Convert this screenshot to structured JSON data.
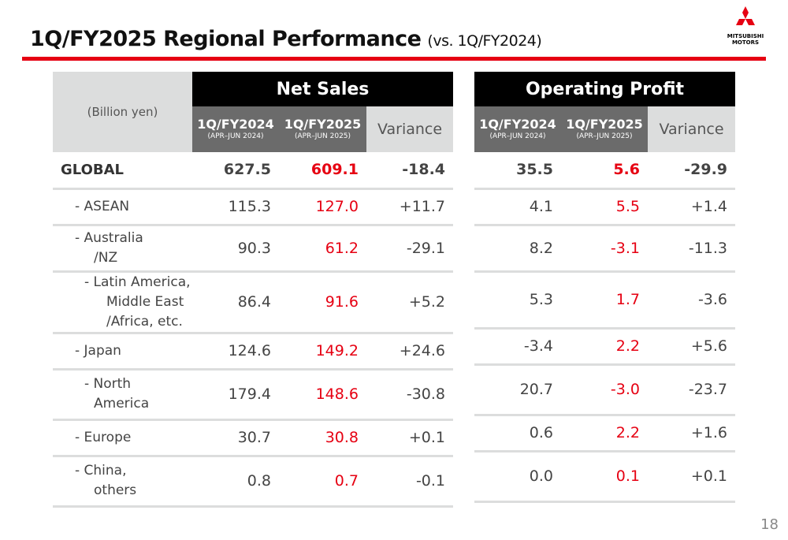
{
  "title": "1Q/FY2025 Regional Performance",
  "subtitle": "(vs. 1Q/FY2024)",
  "logo_text": "MITSUBISHI MOTORS",
  "unit_label": "(Billion yen)",
  "net_sales_header": "Net Sales",
  "operating_profit_header": "Operating Profit",
  "columns": {
    "prev": "1Q/FY2024",
    "prev_period": "(APR–JUN 2024)",
    "curr": "1Q/FY2025",
    "curr_period": "(APR–JUN 2025)",
    "variance": "Variance"
  },
  "rows": [
    {
      "label_lines": [
        "GLOBAL"
      ],
      "ns_prev": "627.5",
      "ns_curr": "609.1",
      "ns_var": "-18.4",
      "op_prev": "35.5",
      "op_curr": "5.6",
      "op_var": "-29.9"
    },
    {
      "label_lines": [
        "- ASEAN"
      ],
      "ns_prev": "115.3",
      "ns_curr": "127.0",
      "ns_var": "+11.7",
      "op_prev": "4.1",
      "op_curr": "5.5",
      "op_var": "+1.4"
    },
    {
      "label_lines": [
        "- Australia",
        "/NZ"
      ],
      "ns_prev": "90.3",
      "ns_curr": "61.2",
      "ns_var": "-29.1",
      "op_prev": "8.2",
      "op_curr": "-3.1",
      "op_var": "-11.3"
    },
    {
      "label_lines": [
        "- Latin America,",
        "Middle East",
        "/Africa, etc."
      ],
      "ns_prev": "86.4",
      "ns_curr": "91.6",
      "ns_var": "+5.2",
      "op_prev": "5.3",
      "op_curr": "1.7",
      "op_var": "-3.6"
    },
    {
      "label_lines": [
        "- Japan"
      ],
      "ns_prev": "124.6",
      "ns_curr": "149.2",
      "ns_var": "+24.6",
      "op_prev": "-3.4",
      "op_curr": "2.2",
      "op_var": "+5.6"
    },
    {
      "label_lines": [
        "- North",
        "America"
      ],
      "ns_prev": "179.4",
      "ns_curr": "148.6",
      "ns_var": "-30.8",
      "op_prev": "20.7",
      "op_curr": "-3.0",
      "op_var": "-23.7"
    },
    {
      "label_lines": [
        "- Europe"
      ],
      "ns_prev": "30.7",
      "ns_curr": "30.8",
      "ns_var": "+0.1",
      "op_prev": "0.6",
      "op_curr": "2.2",
      "op_var": "+1.6"
    },
    {
      "label_lines": [
        "- China,",
        "others"
      ],
      "ns_prev": "0.8",
      "ns_curr": "0.7",
      "ns_var": "-0.1",
      "op_prev": "0.0",
      "op_curr": "0.1",
      "op_var": "+0.1"
    }
  ],
  "page_number": "18",
  "colors": {
    "accent": "#e60012",
    "header_black": "#000000",
    "header_grey": "#6b6b6b",
    "header_light": "#dcdddd"
  }
}
